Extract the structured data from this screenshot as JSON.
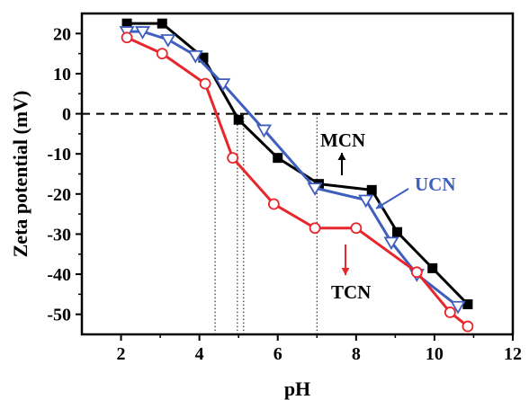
{
  "chart_data": {
    "type": "line",
    "title": "",
    "xlabel": "pH",
    "ylabel": "Zeta potential (mV)",
    "xlim": [
      1,
      12
    ],
    "ylim": [
      -55,
      25
    ],
    "xticks": [
      2,
      4,
      6,
      8,
      10,
      12
    ],
    "yticks": [
      20,
      10,
      0,
      -10,
      -20,
      -30,
      -40,
      -50
    ],
    "xtick_labels": [
      "2",
      "4",
      "6",
      "8",
      "10",
      "12"
    ],
    "ytick_labels": [
      "20",
      "10",
      "0",
      "-10",
      "-20",
      "-30",
      "-40",
      "-50"
    ],
    "grid": false,
    "legend": "none",
    "zero_line": 0,
    "guide_lines_x": [
      4.4,
      4.97,
      5.13,
      7.0
    ],
    "series": [
      {
        "name": "MCN",
        "color": "#000000",
        "marker": "filled-square",
        "x": [
          2.15,
          3.05,
          4.1,
          5.0,
          6.0,
          7.05,
          8.4,
          9.05,
          9.95,
          10.85
        ],
        "y": [
          22.5,
          22.5,
          14,
          -1.5,
          -11,
          -17.5,
          -19,
          -29.5,
          -38.5,
          -47.5
        ]
      },
      {
        "name": "UCN",
        "color": "#3f5fbf",
        "marker": "open-down-triangle",
        "x": [
          2.15,
          2.55,
          3.2,
          3.9,
          4.6,
          5.65,
          6.95,
          8.25,
          8.9,
          9.55,
          10.6
        ],
        "y": [
          20.5,
          20.5,
          18.5,
          14.5,
          7.5,
          -4,
          -18.5,
          -21.5,
          -32,
          -40,
          -48
        ]
      },
      {
        "name": "TCN",
        "color": "#e8262b",
        "marker": "open-circle",
        "x": [
          2.15,
          3.05,
          4.15,
          4.85,
          5.9,
          6.95,
          8.0,
          9.55,
          10.4,
          10.85
        ],
        "y": [
          19,
          15,
          7.5,
          -11,
          -22.5,
          -28.5,
          -28.5,
          -39.5,
          -49.5,
          -53
        ]
      }
    ],
    "annotations": [
      {
        "text": "MCN",
        "color": "#000000",
        "arrow": "up"
      },
      {
        "text": "UCN",
        "color": "#3f5fbf",
        "arrow": "left-down"
      },
      {
        "text": "TCN",
        "color": "#000000",
        "arrow": "down-red"
      }
    ]
  }
}
